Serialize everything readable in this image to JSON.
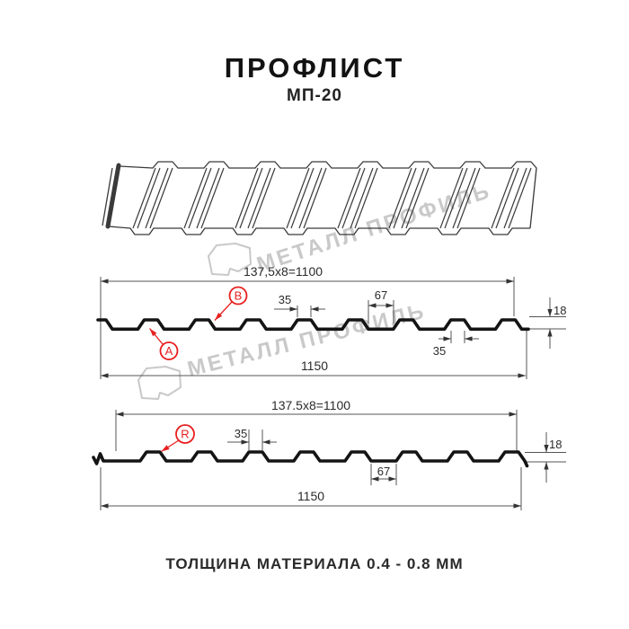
{
  "header": {
    "title": "ПРОФЛИСТ",
    "subtitle": "МП-20"
  },
  "watermark": {
    "text": "МЕТАЛЛ ПРОФИЛЬ",
    "color": "#c9c9c9"
  },
  "colors": {
    "background": "#ffffff",
    "line": "#141414",
    "sheet3d_line": "#3a3a3a",
    "dim_line": "#555555",
    "dim_arrow": "#333333",
    "red": "#e81f1f"
  },
  "front_view": {
    "module_width": "137,5x8=1100",
    "full_width": "1150",
    "rib_top_width": "35",
    "valley_width": "67",
    "profile_height": "18",
    "rib_bottom_width": "35",
    "marker_a": "A",
    "marker_b": "B"
  },
  "back_view": {
    "module_width": "137.5x8=1100",
    "full_width": "1150",
    "rib_top_width": "35",
    "valley_width": "67",
    "profile_height": "18",
    "marker_r": "R"
  },
  "footer": {
    "note": "ТОЛЩИНА МАТЕРИАЛА 0.4 - 0.8 ММ"
  }
}
